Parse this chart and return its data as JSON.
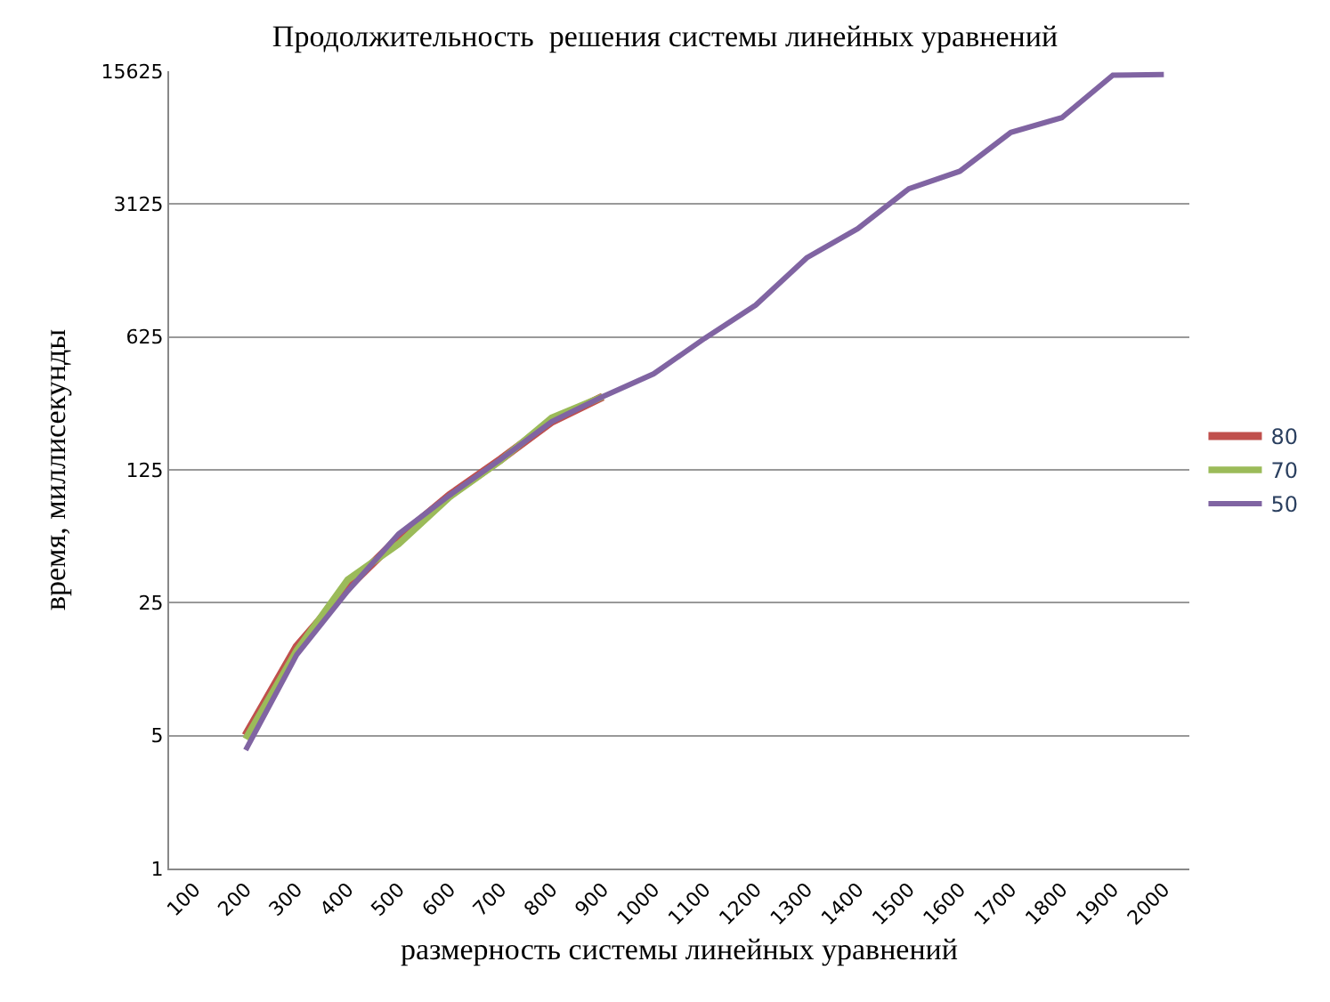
{
  "chart_data": {
    "type": "line",
    "title": "Продолжительность  решения системы линейных уравнений",
    "xlabel": "размерность системы линейных уравнений",
    "ylabel": "время, миллисекунды",
    "categories": [
      "100",
      "200",
      "300",
      "400",
      "500",
      "600",
      "700",
      "800",
      "900",
      "1000",
      "1100",
      "1200",
      "1300",
      "1400",
      "1500",
      "1600",
      "1700",
      "1800",
      "1900",
      "2000"
    ],
    "series": [
      {
        "name": "80",
        "color": "#c0504d",
        "values": [
          null,
          5,
          14.7,
          30,
          55,
          92,
          142,
          224,
          303,
          null,
          null,
          null,
          null,
          null,
          null,
          null,
          null,
          null,
          null,
          null
        ]
      },
      {
        "name": "70",
        "color": "#9bbb59",
        "values": [
          null,
          4.8,
          14,
          33,
          51,
          90,
          140,
          235,
          303,
          null,
          null,
          null,
          null,
          null,
          null,
          null,
          null,
          null,
          null,
          null
        ]
      },
      {
        "name": "50",
        "color": "#8064a2",
        "values": [
          null,
          4.2,
          13.3,
          28.8,
          57.5,
          92,
          142,
          224,
          303,
          400,
          615,
          920,
          1630,
          2320,
          3760,
          4650,
          7440,
          8900,
          14900,
          15000
        ]
      }
    ],
    "log": "y",
    "ylim": [
      1,
      15625
    ],
    "yticks": [
      1,
      5,
      25,
      125,
      625,
      3125,
      15625
    ],
    "grid": "y",
    "legend": "right",
    "marker": "none",
    "line_style": "solid"
  }
}
